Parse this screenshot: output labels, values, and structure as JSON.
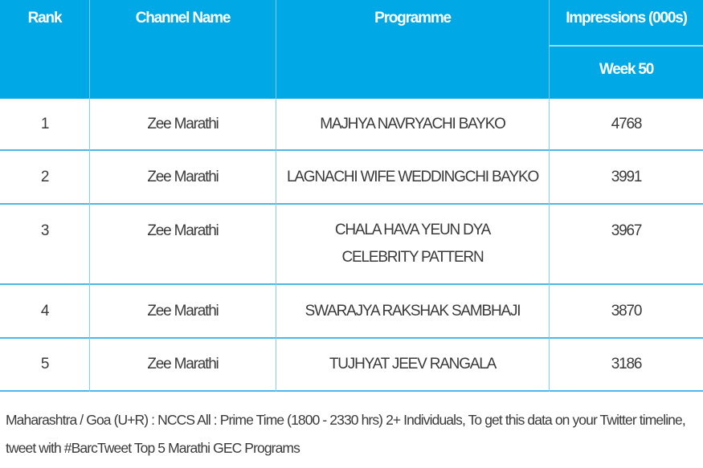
{
  "table": {
    "header_color": "#00a9e6",
    "headers": {
      "rank": "Rank",
      "channel": "Channel Name",
      "programme": "Programme",
      "impressions": "Impressions (000s)",
      "week": "Week 50"
    },
    "rows": [
      {
        "rank": "1",
        "channel": "Zee Marathi",
        "programme": "MAJHYA NAVRYACHI BAYKO",
        "impressions": "4768"
      },
      {
        "rank": "2",
        "channel": "Zee Marathi",
        "programme": "LAGNACHI WIFE WEDDINGCHI BAYKO",
        "impressions": "3991"
      },
      {
        "rank": "3",
        "channel": "Zee Marathi",
        "programme": "CHALA HAVA YEUN DYA CELEBRITY PATTERN",
        "impressions": "3967"
      },
      {
        "rank": "4",
        "channel": "Zee Marathi",
        "programme": "SWARAJYA RAKSHAK SAMBHAJI",
        "impressions": "3870"
      },
      {
        "rank": "5",
        "channel": "Zee Marathi",
        "programme": "TUJHYAT JEEV RANGALA",
        "impressions": "3186"
      }
    ]
  },
  "footer": {
    "note": "Maharashtra / Goa (U+R) : NCCS All : Prime Time (1800 - 2330 hrs) 2+ Individuals, To get this data on your Twitter timeline, tweet with #BarcTweet Top 5 Marathi GEC Programs"
  }
}
